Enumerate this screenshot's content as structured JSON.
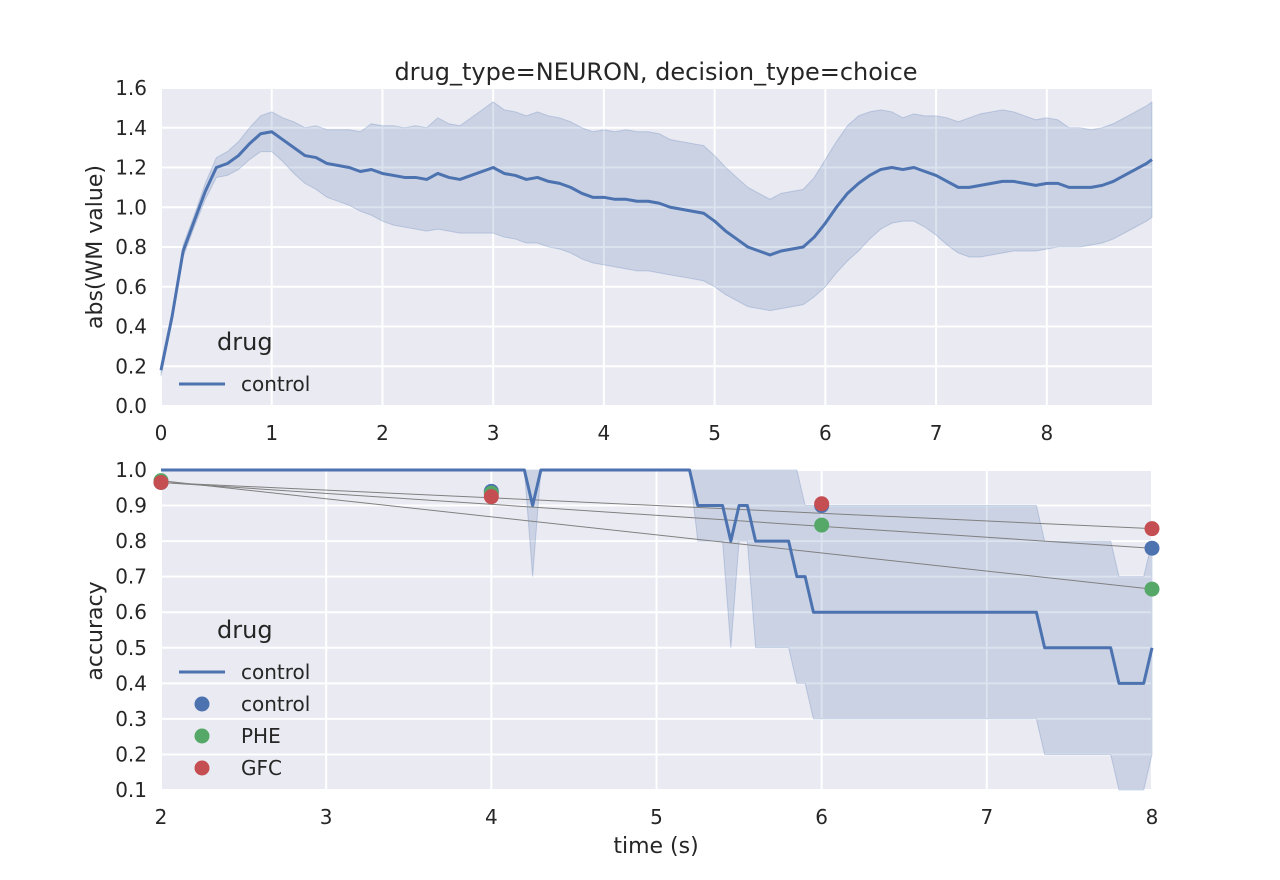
{
  "title": "drug_type=NEURON, decision_type=choice",
  "colors": {
    "background": "#ffffff",
    "axes_bg": "#eaeaf2",
    "grid": "#ffffff",
    "control": "#4c72b0",
    "PHE": "#55a868",
    "GFC": "#c44e52",
    "band": "#4c72b0",
    "thin_line": "#808080"
  },
  "chart_data": [
    {
      "type": "line",
      "title": "drug_type=NEURON, decision_type=choice",
      "xlabel": "",
      "ylabel": "abs(WM value)",
      "xlim": [
        0,
        8.95
      ],
      "ylim": [
        0.0,
        1.6
      ],
      "xticks": [
        0,
        1,
        2,
        3,
        4,
        5,
        6,
        7,
        8
      ],
      "yticks": [
        0.0,
        0.2,
        0.4,
        0.6,
        0.8,
        1.0,
        1.2,
        1.4,
        1.6
      ],
      "grid": true,
      "legend": {
        "title": "drug",
        "placement": "lower-left",
        "entries": [
          {
            "label": "control",
            "kind": "line",
            "color": "#4c72b0"
          }
        ]
      },
      "series": [
        {
          "name": "control",
          "color": "#4c72b0",
          "points": [
            [
              0.0,
              0.18
            ],
            [
              0.1,
              0.45
            ],
            [
              0.2,
              0.78
            ],
            [
              0.3,
              0.93
            ],
            [
              0.4,
              1.08
            ],
            [
              0.5,
              1.2
            ],
            [
              0.6,
              1.22
            ],
            [
              0.7,
              1.26
            ],
            [
              0.8,
              1.32
            ],
            [
              0.9,
              1.37
            ],
            [
              1.0,
              1.38
            ],
            [
              1.1,
              1.34
            ],
            [
              1.2,
              1.3
            ],
            [
              1.3,
              1.26
            ],
            [
              1.4,
              1.25
            ],
            [
              1.5,
              1.22
            ],
            [
              1.6,
              1.21
            ],
            [
              1.7,
              1.2
            ],
            [
              1.8,
              1.18
            ],
            [
              1.9,
              1.19
            ],
            [
              2.0,
              1.17
            ],
            [
              2.1,
              1.16
            ],
            [
              2.2,
              1.15
            ],
            [
              2.3,
              1.15
            ],
            [
              2.4,
              1.14
            ],
            [
              2.5,
              1.17
            ],
            [
              2.6,
              1.15
            ],
            [
              2.7,
              1.14
            ],
            [
              2.8,
              1.16
            ],
            [
              2.9,
              1.18
            ],
            [
              3.0,
              1.2
            ],
            [
              3.1,
              1.17
            ],
            [
              3.2,
              1.16
            ],
            [
              3.3,
              1.14
            ],
            [
              3.4,
              1.15
            ],
            [
              3.5,
              1.13
            ],
            [
              3.6,
              1.12
            ],
            [
              3.7,
              1.1
            ],
            [
              3.8,
              1.07
            ],
            [
              3.9,
              1.05
            ],
            [
              4.0,
              1.05
            ],
            [
              4.1,
              1.04
            ],
            [
              4.2,
              1.04
            ],
            [
              4.3,
              1.03
            ],
            [
              4.4,
              1.03
            ],
            [
              4.5,
              1.02
            ],
            [
              4.6,
              1.0
            ],
            [
              4.7,
              0.99
            ],
            [
              4.8,
              0.98
            ],
            [
              4.9,
              0.97
            ],
            [
              5.0,
              0.93
            ],
            [
              5.1,
              0.88
            ],
            [
              5.2,
              0.84
            ],
            [
              5.3,
              0.8
            ],
            [
              5.4,
              0.78
            ],
            [
              5.5,
              0.76
            ],
            [
              5.6,
              0.78
            ],
            [
              5.7,
              0.79
            ],
            [
              5.8,
              0.8
            ],
            [
              5.9,
              0.85
            ],
            [
              6.0,
              0.92
            ],
            [
              6.1,
              1.0
            ],
            [
              6.2,
              1.07
            ],
            [
              6.3,
              1.12
            ],
            [
              6.4,
              1.16
            ],
            [
              6.5,
              1.19
            ],
            [
              6.6,
              1.2
            ],
            [
              6.7,
              1.19
            ],
            [
              6.8,
              1.2
            ],
            [
              6.9,
              1.18
            ],
            [
              7.0,
              1.16
            ],
            [
              7.1,
              1.13
            ],
            [
              7.2,
              1.1
            ],
            [
              7.3,
              1.1
            ],
            [
              7.4,
              1.11
            ],
            [
              7.5,
              1.12
            ],
            [
              7.6,
              1.13
            ],
            [
              7.7,
              1.13
            ],
            [
              7.8,
              1.12
            ],
            [
              7.9,
              1.11
            ],
            [
              8.0,
              1.12
            ],
            [
              8.1,
              1.12
            ],
            [
              8.2,
              1.1
            ],
            [
              8.3,
              1.1
            ],
            [
              8.4,
              1.1
            ],
            [
              8.5,
              1.11
            ],
            [
              8.6,
              1.13
            ],
            [
              8.7,
              1.16
            ],
            [
              8.8,
              1.19
            ],
            [
              8.9,
              1.22
            ],
            [
              8.95,
              1.24
            ]
          ],
          "ci_lower": [
            0.15,
            0.43,
            0.75,
            0.9,
            1.04,
            1.15,
            1.16,
            1.19,
            1.24,
            1.28,
            1.28,
            1.23,
            1.17,
            1.12,
            1.09,
            1.05,
            1.03,
            1.01,
            0.98,
            0.96,
            0.93,
            0.91,
            0.9,
            0.89,
            0.88,
            0.89,
            0.88,
            0.87,
            0.87,
            0.87,
            0.87,
            0.85,
            0.84,
            0.82,
            0.82,
            0.8,
            0.79,
            0.77,
            0.74,
            0.72,
            0.71,
            0.7,
            0.69,
            0.68,
            0.68,
            0.67,
            0.66,
            0.65,
            0.64,
            0.63,
            0.6,
            0.56,
            0.53,
            0.5,
            0.49,
            0.48,
            0.49,
            0.5,
            0.51,
            0.55,
            0.6,
            0.67,
            0.73,
            0.78,
            0.84,
            0.89,
            0.92,
            0.93,
            0.93,
            0.9,
            0.86,
            0.81,
            0.77,
            0.75,
            0.75,
            0.76,
            0.77,
            0.78,
            0.78,
            0.78,
            0.79,
            0.8,
            0.8,
            0.8,
            0.81,
            0.82,
            0.84,
            0.87,
            0.9,
            0.93,
            0.95
          ],
          "ci_upper": [
            0.21,
            0.47,
            0.81,
            0.96,
            1.12,
            1.25,
            1.28,
            1.33,
            1.4,
            1.46,
            1.48,
            1.45,
            1.43,
            1.4,
            1.41,
            1.39,
            1.39,
            1.39,
            1.38,
            1.42,
            1.41,
            1.41,
            1.4,
            1.41,
            1.4,
            1.45,
            1.42,
            1.41,
            1.45,
            1.49,
            1.53,
            1.49,
            1.48,
            1.46,
            1.48,
            1.46,
            1.45,
            1.43,
            1.4,
            1.38,
            1.39,
            1.38,
            1.39,
            1.38,
            1.38,
            1.37,
            1.34,
            1.33,
            1.32,
            1.31,
            1.26,
            1.2,
            1.15,
            1.1,
            1.07,
            1.04,
            1.07,
            1.08,
            1.09,
            1.15,
            1.24,
            1.33,
            1.41,
            1.46,
            1.48,
            1.49,
            1.48,
            1.45,
            1.47,
            1.46,
            1.46,
            1.45,
            1.43,
            1.45,
            1.47,
            1.48,
            1.49,
            1.48,
            1.46,
            1.44,
            1.45,
            1.44,
            1.4,
            1.4,
            1.39,
            1.4,
            1.42,
            1.45,
            1.48,
            1.51,
            1.53
          ]
        }
      ]
    },
    {
      "type": "line",
      "title": "",
      "xlabel": "time (s)",
      "ylabel": "accuracy",
      "xlim": [
        2,
        8
      ],
      "ylim": [
        0.1,
        1.0
      ],
      "xticks": [
        2,
        3,
        4,
        5,
        6,
        7,
        8
      ],
      "yticks": [
        0.1,
        0.2,
        0.3,
        0.4,
        0.5,
        0.6,
        0.7,
        0.8,
        0.9,
        1.0
      ],
      "grid": true,
      "legend": {
        "title": "drug",
        "placement": "lower-left",
        "entries": [
          {
            "label": "control",
            "kind": "line",
            "color": "#4c72b0"
          },
          {
            "label": "control",
            "kind": "marker",
            "color": "#4c72b0"
          },
          {
            "label": "PHE",
            "kind": "marker",
            "color": "#55a868"
          },
          {
            "label": "GFC",
            "kind": "marker",
            "color": "#c44e52"
          }
        ]
      },
      "line_series": {
        "name": "control",
        "color": "#4c72b0",
        "points": [
          [
            2.0,
            1.0
          ],
          [
            4.2,
            1.0
          ],
          [
            4.25,
            0.9
          ],
          [
            4.3,
            1.0
          ],
          [
            5.2,
            1.0
          ],
          [
            5.25,
            0.9
          ],
          [
            5.4,
            0.9
          ],
          [
            5.45,
            0.8
          ],
          [
            5.5,
            0.9
          ],
          [
            5.55,
            0.9
          ],
          [
            5.6,
            0.8
          ],
          [
            5.8,
            0.8
          ],
          [
            5.85,
            0.7
          ],
          [
            5.9,
            0.7
          ],
          [
            5.95,
            0.6
          ],
          [
            7.3,
            0.6
          ],
          [
            7.35,
            0.5
          ],
          [
            7.75,
            0.5
          ],
          [
            7.8,
            0.4
          ],
          [
            7.95,
            0.4
          ],
          [
            8.0,
            0.5
          ]
        ],
        "band": [
          [
            2.0,
            1.0,
            1.0
          ],
          [
            4.2,
            1.0,
            1.0
          ],
          [
            4.25,
            0.7,
            1.0
          ],
          [
            4.3,
            1.0,
            1.0
          ],
          [
            5.2,
            1.0,
            1.0
          ],
          [
            5.25,
            0.8,
            1.0
          ],
          [
            5.4,
            0.8,
            1.0
          ],
          [
            5.45,
            0.5,
            1.0
          ],
          [
            5.5,
            0.8,
            1.0
          ],
          [
            5.55,
            0.8,
            1.0
          ],
          [
            5.6,
            0.5,
            1.0
          ],
          [
            5.8,
            0.5,
            1.0
          ],
          [
            5.85,
            0.4,
            1.0
          ],
          [
            5.9,
            0.4,
            0.9
          ],
          [
            5.95,
            0.3,
            0.9
          ],
          [
            7.3,
            0.3,
            0.9
          ],
          [
            7.35,
            0.2,
            0.8
          ],
          [
            7.75,
            0.2,
            0.8
          ],
          [
            7.8,
            0.1,
            0.7
          ],
          [
            7.95,
            0.1,
            0.7
          ],
          [
            8.0,
            0.2,
            0.8
          ]
        ]
      },
      "scatter_series": [
        {
          "name": "control",
          "color": "#4c72b0",
          "points": [
            [
              2,
              0.965
            ],
            [
              4,
              0.94
            ],
            [
              6,
              0.9
            ],
            [
              8,
              0.78
            ]
          ]
        },
        {
          "name": "PHE",
          "color": "#55a868",
          "points": [
            [
              2,
              0.97
            ],
            [
              4,
              0.935
            ],
            [
              6,
              0.845
            ],
            [
              8,
              0.665
            ]
          ]
        },
        {
          "name": "GFC",
          "color": "#c44e52",
          "points": [
            [
              2,
              0.965
            ],
            [
              4,
              0.925
            ],
            [
              6,
              0.905
            ],
            [
              8,
              0.835
            ]
          ]
        }
      ],
      "trend_lines": [
        {
          "color": "#808080",
          "points": [
            [
              2,
              0.97
            ],
            [
              8,
              0.665
            ]
          ]
        },
        {
          "color": "#808080",
          "points": [
            [
              2,
              0.965
            ],
            [
              8,
              0.78
            ]
          ]
        },
        {
          "color": "#808080",
          "points": [
            [
              2,
              0.965
            ],
            [
              8,
              0.835
            ]
          ]
        }
      ]
    }
  ]
}
